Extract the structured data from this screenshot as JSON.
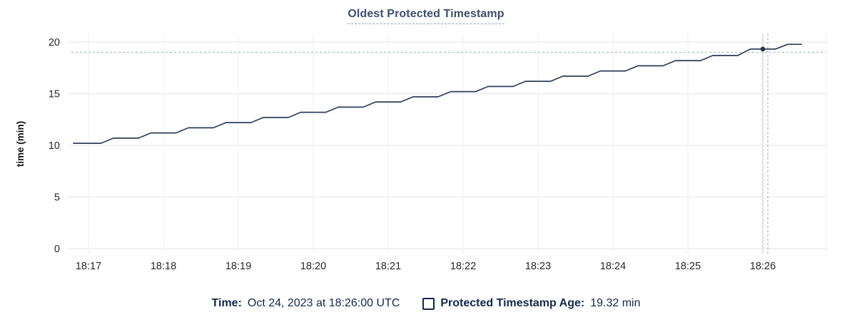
{
  "title": {
    "text": "Oldest Protected Timestamp"
  },
  "tooltip": {
    "time_label": "Time:",
    "time_value": "Oct 24, 2023 at 18:26:00 UTC",
    "series_label": "Protected Timestamp Age:",
    "series_value": "19.32 min"
  },
  "colors": {
    "title_text": "#3e4e6d",
    "title_underline": "#93a1ba",
    "legend_text": "#14294a",
    "series_line": "#2e3d59",
    "hover_dot": "#22324e",
    "crosshair": "#a9bcc4",
    "gridline": "#efefef",
    "gridline_highlight": "#e3e3e3",
    "axis_text": "#26292d"
  },
  "chart_data": {
    "type": "line",
    "title": "Oldest Protected Timestamp",
    "xlabel": "",
    "ylabel": "time (min)",
    "ylim": [
      0,
      20
    ],
    "yticks": [
      0,
      5,
      10,
      15,
      20
    ],
    "xticklabels": [
      "18:17",
      "18:18",
      "18:19",
      "18:20",
      "18:21",
      "18:22",
      "18:23",
      "18:24",
      "18:25",
      "18:26"
    ],
    "x_origin": "18:16:00",
    "x_tick_interval_sec": 60,
    "grid": true,
    "legend_position": "bottom",
    "series": [
      {
        "name": "Protected Timestamp Age",
        "unit": "min",
        "points": [
          [
            48,
            10.2
          ],
          [
            70,
            10.2
          ],
          [
            80,
            10.7
          ],
          [
            100,
            10.7
          ],
          [
            110,
            11.2
          ],
          [
            130,
            11.2
          ],
          [
            140,
            11.7
          ],
          [
            160,
            11.7
          ],
          [
            170,
            12.2
          ],
          [
            190,
            12.2
          ],
          [
            200,
            12.7
          ],
          [
            220,
            12.7
          ],
          [
            230,
            13.2
          ],
          [
            250,
            13.2
          ],
          [
            260,
            13.7
          ],
          [
            280,
            13.7
          ],
          [
            290,
            14.2
          ],
          [
            310,
            14.2
          ],
          [
            320,
            14.7
          ],
          [
            340,
            14.7
          ],
          [
            350,
            15.2
          ],
          [
            370,
            15.2
          ],
          [
            380,
            15.7
          ],
          [
            400,
            15.7
          ],
          [
            410,
            16.2
          ],
          [
            430,
            16.2
          ],
          [
            440,
            16.7
          ],
          [
            460,
            16.7
          ],
          [
            470,
            17.2
          ],
          [
            490,
            17.2
          ],
          [
            500,
            17.7
          ],
          [
            520,
            17.7
          ],
          [
            530,
            18.2
          ],
          [
            550,
            18.2
          ],
          [
            560,
            18.7
          ],
          [
            580,
            18.7
          ],
          [
            590,
            19.32
          ],
          [
            610,
            19.32
          ],
          [
            620,
            19.78
          ],
          [
            631,
            19.78
          ]
        ]
      }
    ],
    "hover": {
      "highlight_tick": "18:26",
      "crosshair_x_sec": 604,
      "crosshair_y_value": 19.0,
      "point_x_sec": 600,
      "point_value": 19.32,
      "point_time": "18:26:00"
    }
  }
}
